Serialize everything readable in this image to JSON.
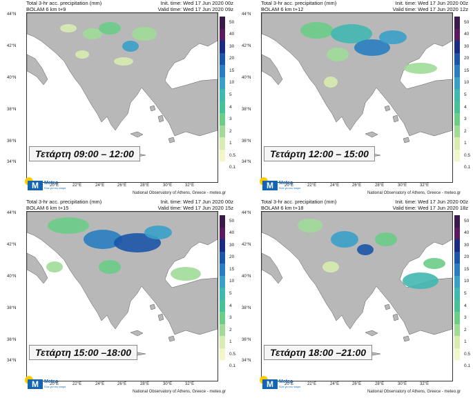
{
  "colorbar": {
    "labels": [
      "50",
      "40",
      "30",
      "20",
      "15",
      "10",
      "5",
      "4",
      "3",
      "2",
      "1",
      "0.5",
      "0.1"
    ],
    "colors": [
      "#3a1a4a",
      "#5a1a60",
      "#1a2a80",
      "#1c55a8",
      "#2a7ec0",
      "#3aa0c8",
      "#40b8b0",
      "#48c098",
      "#6ccc88",
      "#a0dc98",
      "#d8ecb0",
      "#f2f6c8",
      "#ffffff"
    ]
  },
  "lat_labels": [
    "44°N",
    "42°N",
    "40°N",
    "38°N",
    "36°N",
    "34°N"
  ],
  "lon_labels": [
    "20°E",
    "22°E",
    "24°E",
    "26°E",
    "28°E",
    "30°E",
    "32°E"
  ],
  "logo": {
    "name": "Meteo",
    "tagline": "Όλα για τον καιρό"
  },
  "credit": "National Observatory of Athens, Greece - meteo.gr",
  "panels": [
    {
      "title": "Total 3-hr acc. precipitation (mm)",
      "model": "BOLAM 6 km t+9",
      "init": "Init. time: Wed 17 Jun 2020 00z",
      "valid": "Valid time: Wed 17 Jun 2020 09z",
      "caption": "Τετάρτη 09:00 – 12:00"
    },
    {
      "title": "Total 3-hr acc. precipitation (mm)",
      "model": "BOLAM 6 km t+12",
      "init": "Init. time: Wed 17 Jun 2020 00z",
      "valid": "Valid time: Wed 17 Jun 2020 12z",
      "caption": "Τετάρτη 12:00 – 15:00"
    },
    {
      "title": "Total 3-hr acc. precipitation (mm)",
      "model": "BOLAM 6 km t+15",
      "init": "Init. time: Wed 17 Jun 2020 00z",
      "valid": "Valid time: Wed 17 Jun 2020 15z",
      "caption": "Τετάρτη 15:00 –18:00"
    },
    {
      "title": "Total 3-hr acc. precipitation (mm)",
      "model": "BOLAM 6 km t+18",
      "init": "Init. time: Wed 17 Jun 2020 00z",
      "valid": "Valid time: Wed 17 Jun 2020 18z",
      "caption": "Τετάρτη 18:00 –21:00"
    }
  ]
}
